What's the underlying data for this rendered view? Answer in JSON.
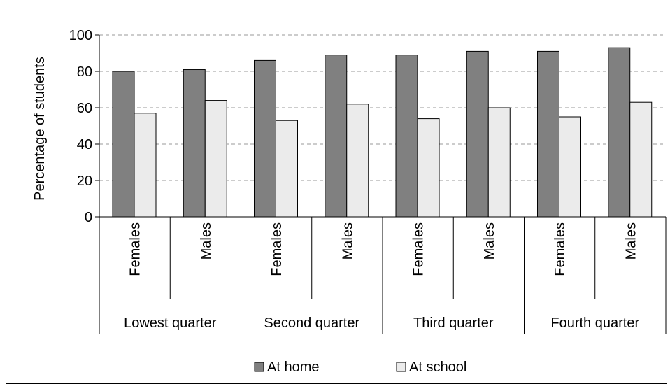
{
  "chart_data": {
    "type": "bar",
    "ylabel": "Percentage of students",
    "xlabel": "",
    "ylim": [
      0,
      100
    ],
    "yticks": [
      "0",
      "20",
      "40",
      "60",
      "80",
      "100"
    ],
    "grid": true,
    "legend_position": "bottom",
    "groups": [
      "Lowest quarter",
      "Second quarter",
      "Third quarter",
      "Fourth quarter"
    ],
    "categories": [
      "Females",
      "Males",
      "Females",
      "Males",
      "Females",
      "Males",
      "Females",
      "Males"
    ],
    "series": [
      {
        "name": "At home",
        "color": "#808080",
        "values": [
          80,
          81,
          86,
          89,
          89,
          91,
          91,
          93
        ]
      },
      {
        "name": "At school",
        "color": "#ebebeb",
        "values": [
          57,
          64,
          53,
          62,
          54,
          60,
          55,
          63
        ]
      }
    ]
  }
}
